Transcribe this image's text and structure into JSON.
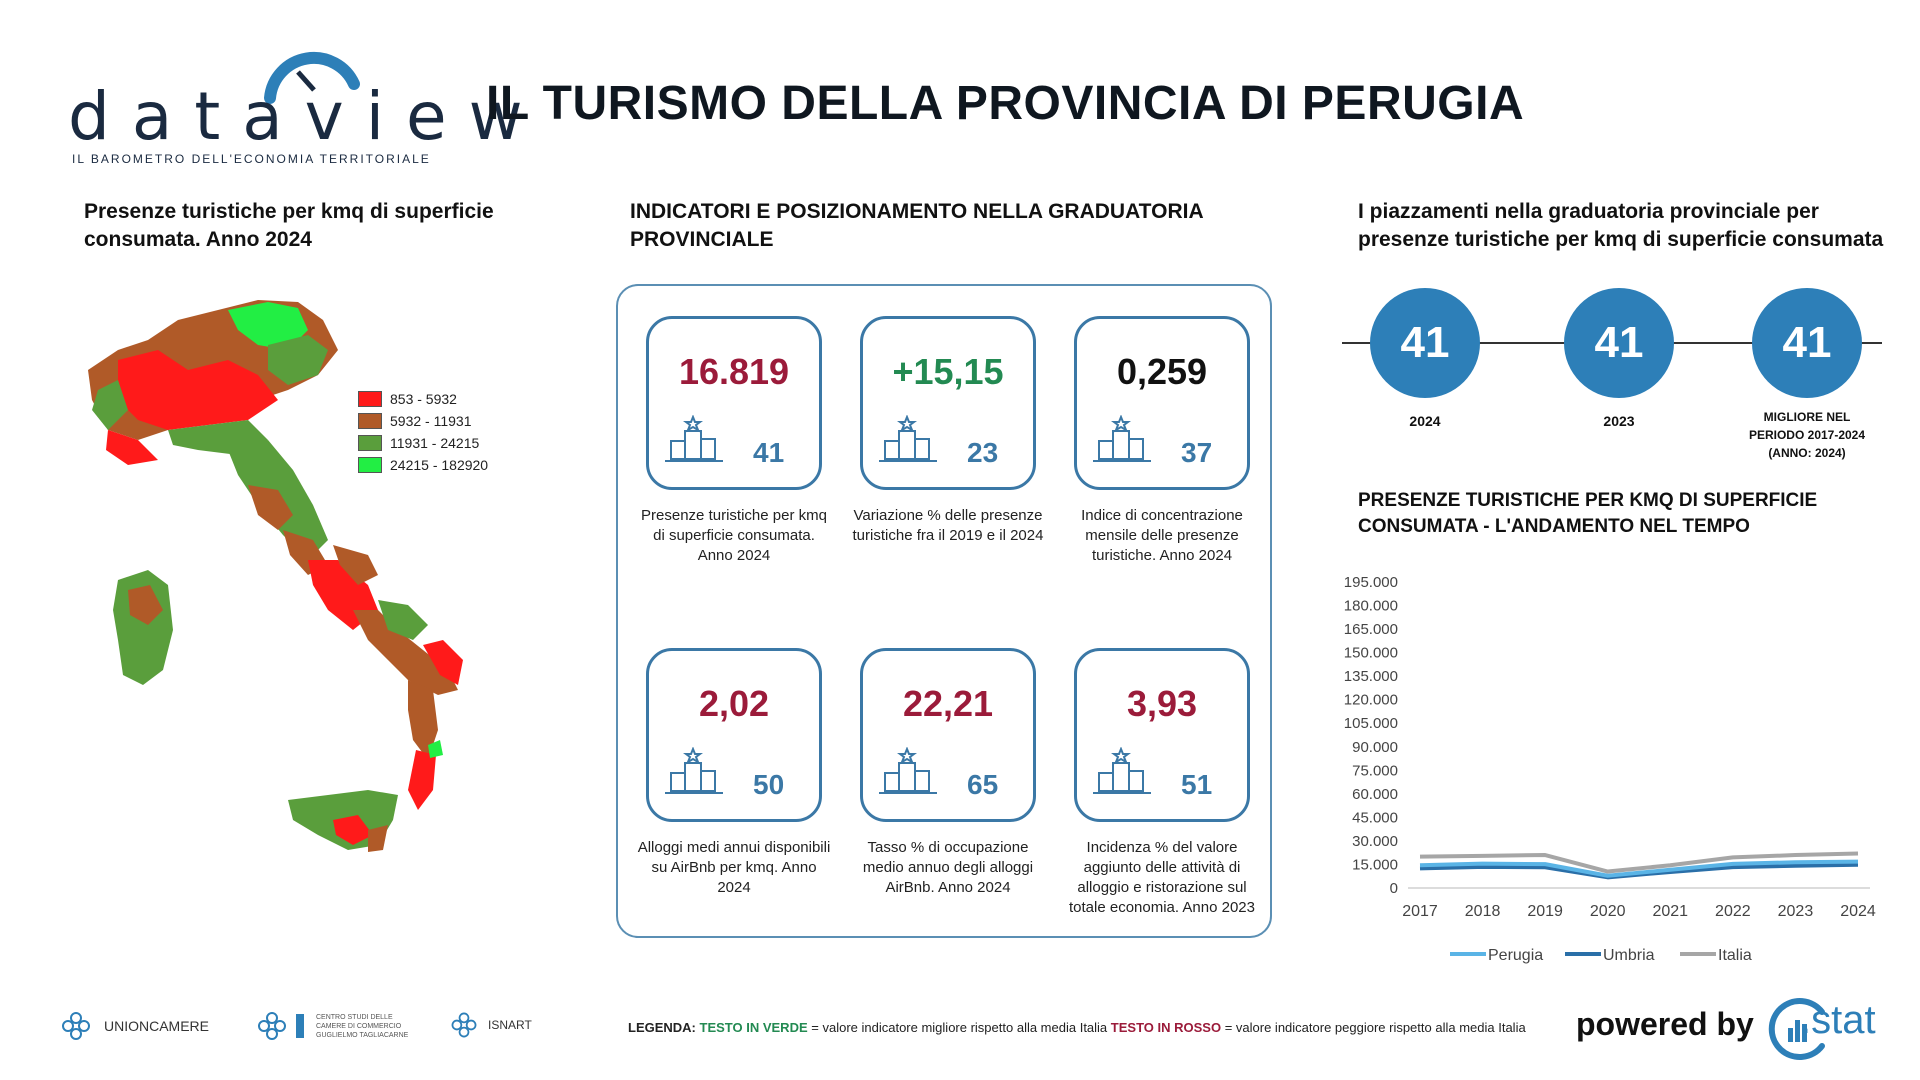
{
  "header": {
    "logo_text": "dataview",
    "logo_subtitle": "IL BAROMETRO DELL'ECONOMIA TERRITORIALE",
    "title": "IL TURISMO DELLA PROVINCIA DI PERUGIA"
  },
  "map_section": {
    "title": "Presenze turistiche per kmq di superficie consumata. Anno 2024",
    "legend": [
      {
        "label": "853 - 5932",
        "color": "#ff1a1a"
      },
      {
        "label": "5932 - 11931",
        "color": "#b05a28"
      },
      {
        "label": "11931 - 24215",
        "color": "#5a9e3c"
      },
      {
        "label": "24215 - 182920",
        "color": "#22ee44"
      }
    ]
  },
  "indicators": {
    "title": "INDICATORI E POSIZIONAMENTO NELLA GRADUATORIA PROVINCIALE",
    "items": [
      {
        "value": "16.819",
        "rank": "41",
        "tone": "red",
        "desc": "Presenze turistiche per kmq di superficie consumata. Anno 2024"
      },
      {
        "value": "+15,15",
        "rank": "23",
        "tone": "green",
        "desc": "Variazione % delle presenze turistiche fra il 2019 e il 2024"
      },
      {
        "value": "0,259",
        "rank": "37",
        "tone": "black",
        "desc": "Indice di concentrazione mensile delle presenze turistiche. Anno 2024"
      },
      {
        "value": "2,02",
        "rank": "50",
        "tone": "red",
        "desc": "Alloggi medi annui disponibili su AirBnb per kmq. Anno 2024"
      },
      {
        "value": "22,21",
        "rank": "65",
        "tone": "red",
        "desc": "Tasso % di occupazione medio annuo degli alloggi AirBnb. Anno 2024"
      },
      {
        "value": "3,93",
        "rank": "51",
        "tone": "red",
        "desc": "Incidenza % del valore aggiunto delle attività di alloggio e ristorazione sul totale economia. Anno 2023"
      }
    ]
  },
  "ranking": {
    "title": "I piazzamenti nella graduatoria provinciale per presenze turistiche per kmq di superficie consumata",
    "items": [
      {
        "value": "41",
        "label": "2024"
      },
      {
        "value": "41",
        "label": "2023"
      },
      {
        "value": "41",
        "label": "MIGLIORE NEL PERIODO 2017-2024 (ANNO: 2024)"
      }
    ]
  },
  "trend": {
    "title": "PRESENZE TURISTICHE PER KMQ DI SUPERFICIE CONSUMATA - L'ANDAMENTO NEL TEMPO"
  },
  "chart_data": {
    "type": "line",
    "title": "PRESENZE TURISTICHE PER KMQ DI SUPERFICIE CONSUMATA - L'ANDAMENTO NEL TEMPO",
    "x": [
      "2017",
      "2018",
      "2019",
      "2020",
      "2021",
      "2022",
      "2023",
      "2024"
    ],
    "yticks": [
      "195.000",
      "180.000",
      "165.000",
      "150.000",
      "135.000",
      "120.000",
      "105.000",
      "90.000",
      "75.000",
      "60.000",
      "45.000",
      "30.000",
      "15.000",
      "0"
    ],
    "ylim": [
      0,
      195000
    ],
    "grid": false,
    "legend_position": "bottom",
    "series": [
      {
        "name": "Perugia",
        "color": "#5ab4e6",
        "values": [
          14500,
          15500,
          15200,
          7800,
          11600,
          15400,
          16400,
          16819
        ]
      },
      {
        "name": "Umbria",
        "color": "#2a6fa8",
        "values": [
          12500,
          13500,
          13200,
          6800,
          10200,
          13300,
          14200,
          14800
        ]
      },
      {
        "name": "Italia",
        "color": "#a6a6a6",
        "values": [
          20000,
          20500,
          21000,
          10500,
          14500,
          19500,
          21000,
          22000
        ]
      }
    ]
  },
  "footer": {
    "logos": [
      "UNIONCAMERE",
      "CENTRO STUDI DELLE CAMERE DI COMMERCIO GUGLIELMO TAGLIACARNE",
      "ISNART"
    ],
    "legend_prefix": "LEGENDA:",
    "legend_green": "TESTO IN VERDE",
    "legend_mid": "= valore indicatore migliore rispetto alla media Italia",
    "legend_red": "TESTO IN ROSSO",
    "legend_end": "= valore indicatore peggiore rispetto alla media Italia",
    "powered_by": "powered by",
    "brand": ".stat"
  }
}
